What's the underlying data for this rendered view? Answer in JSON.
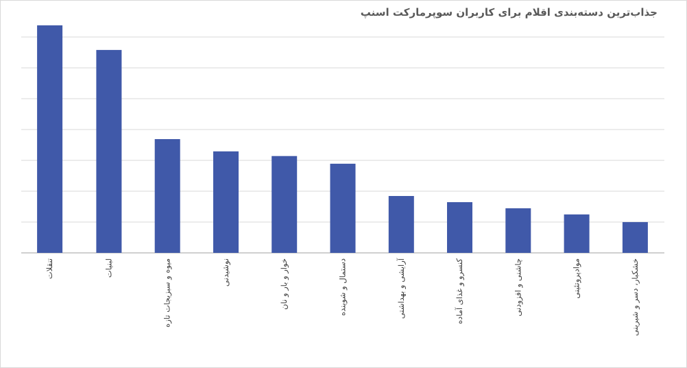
{
  "chart_data": {
    "type": "bar",
    "title": "جذاب‌ترین دسته‌بندی اقلام برای کاربران سوپرمارکت اسنپ",
    "xlabel": "",
    "ylabel": "",
    "ylim": [
      0,
      7.4
    ],
    "categories": [
      "تنقلات",
      "لبنیات",
      "میوه و سبزیجات تازه",
      "نوشیدنی",
      "خوار و بار و نان",
      "دستمال و شوینده",
      "آرایشی و بهداشتی",
      "کنسرو و غذای آماده",
      "چاشنی و افزودنی",
      "موادپروتئینی",
      "خشکبار، دسر و شیرینی"
    ],
    "values": [
      7.4,
      6.6,
      3.7,
      3.3,
      3.15,
      2.9,
      1.85,
      1.65,
      1.45,
      1.25,
      1.0
    ],
    "series": [
      {
        "values": [
          7.4,
          6.6,
          3.7,
          3.3,
          3.15,
          2.9,
          1.85,
          1.65,
          1.45,
          1.25,
          1.0
        ]
      }
    ],
    "y_gridlines": [
      0,
      1,
      2,
      3,
      4,
      5,
      6,
      7
    ],
    "grid": true,
    "y_tick_labels_shown": false,
    "legend": "none",
    "colors": {
      "bar": "#4059a9",
      "grid": "#d9d9d9",
      "title": "#595959",
      "text": "#404040"
    }
  }
}
